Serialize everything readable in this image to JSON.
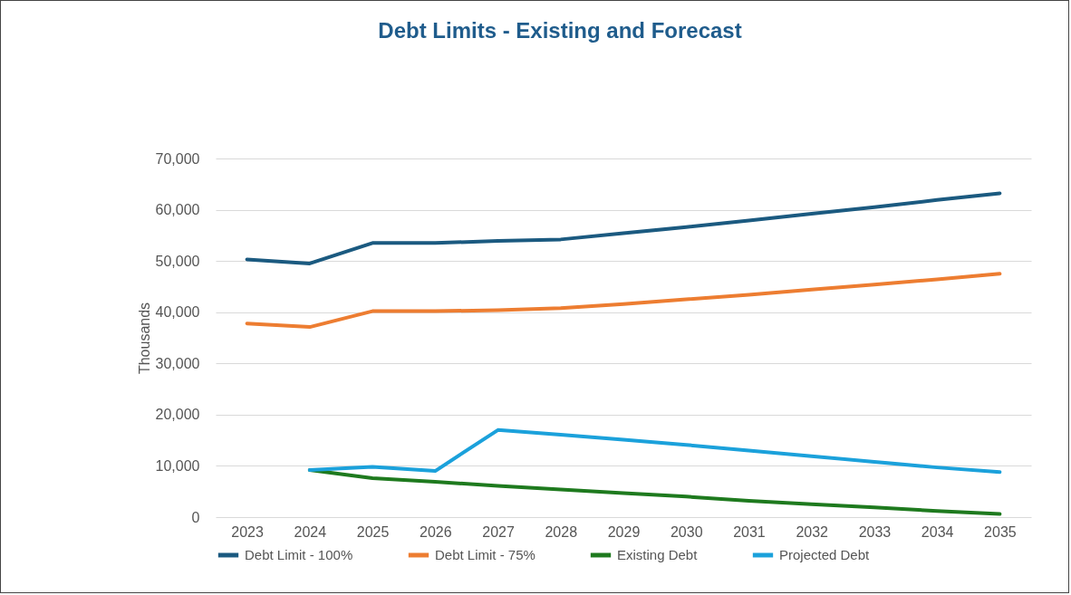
{
  "chart_data": {
    "type": "line",
    "title": "Debt Limits - Existing and Forecast",
    "ylabel": "Thousands",
    "categories": [
      "2023",
      "2024",
      "2025",
      "2026",
      "2027",
      "2028",
      "2029",
      "2030",
      "2031",
      "2032",
      "2033",
      "2034",
      "2035"
    ],
    "series": [
      {
        "name": "Debt Limit - 100%",
        "color": "#1b5a80",
        "values": [
          50300,
          49500,
          53500,
          53500,
          53900,
          54200,
          55400,
          56600,
          57900,
          59200,
          60500,
          61900,
          63200
        ]
      },
      {
        "name": "Debt Limit - 75%",
        "color": "#ed7d31",
        "values": [
          37800,
          37100,
          40200,
          40200,
          40400,
          40800,
          41600,
          42500,
          43400,
          44400,
          45400,
          46400,
          47500
        ]
      },
      {
        "name": "Existing Debt",
        "color": "#1e7a1e",
        "values": [
          null,
          9200,
          7600,
          6900,
          6100,
          5400,
          4700,
          4000,
          3200,
          2500,
          1900,
          1200,
          600
        ]
      },
      {
        "name": "Projected Debt",
        "color": "#1ba1db",
        "values": [
          null,
          9200,
          9800,
          9000,
          17000,
          16100,
          15100,
          14100,
          13000,
          11900,
          10800,
          9700,
          8800
        ]
      }
    ],
    "ylim": [
      0,
      70000
    ],
    "yticks": [
      0,
      {
        "value": 10000,
        "label": "10,000"
      },
      {
        "value": 20000,
        "label": "20,000"
      },
      {
        "value": 30000,
        "label": "30,000"
      },
      {
        "value": 40000,
        "label": "40,000"
      },
      {
        "value": 50000,
        "label": "50,000"
      },
      {
        "value": 60000,
        "label": "60,000"
      },
      {
        "value": 70000,
        "label": "70,000"
      }
    ],
    "grid": "y",
    "legend": "bottom",
    "marker": "none",
    "line_style": "solid"
  }
}
